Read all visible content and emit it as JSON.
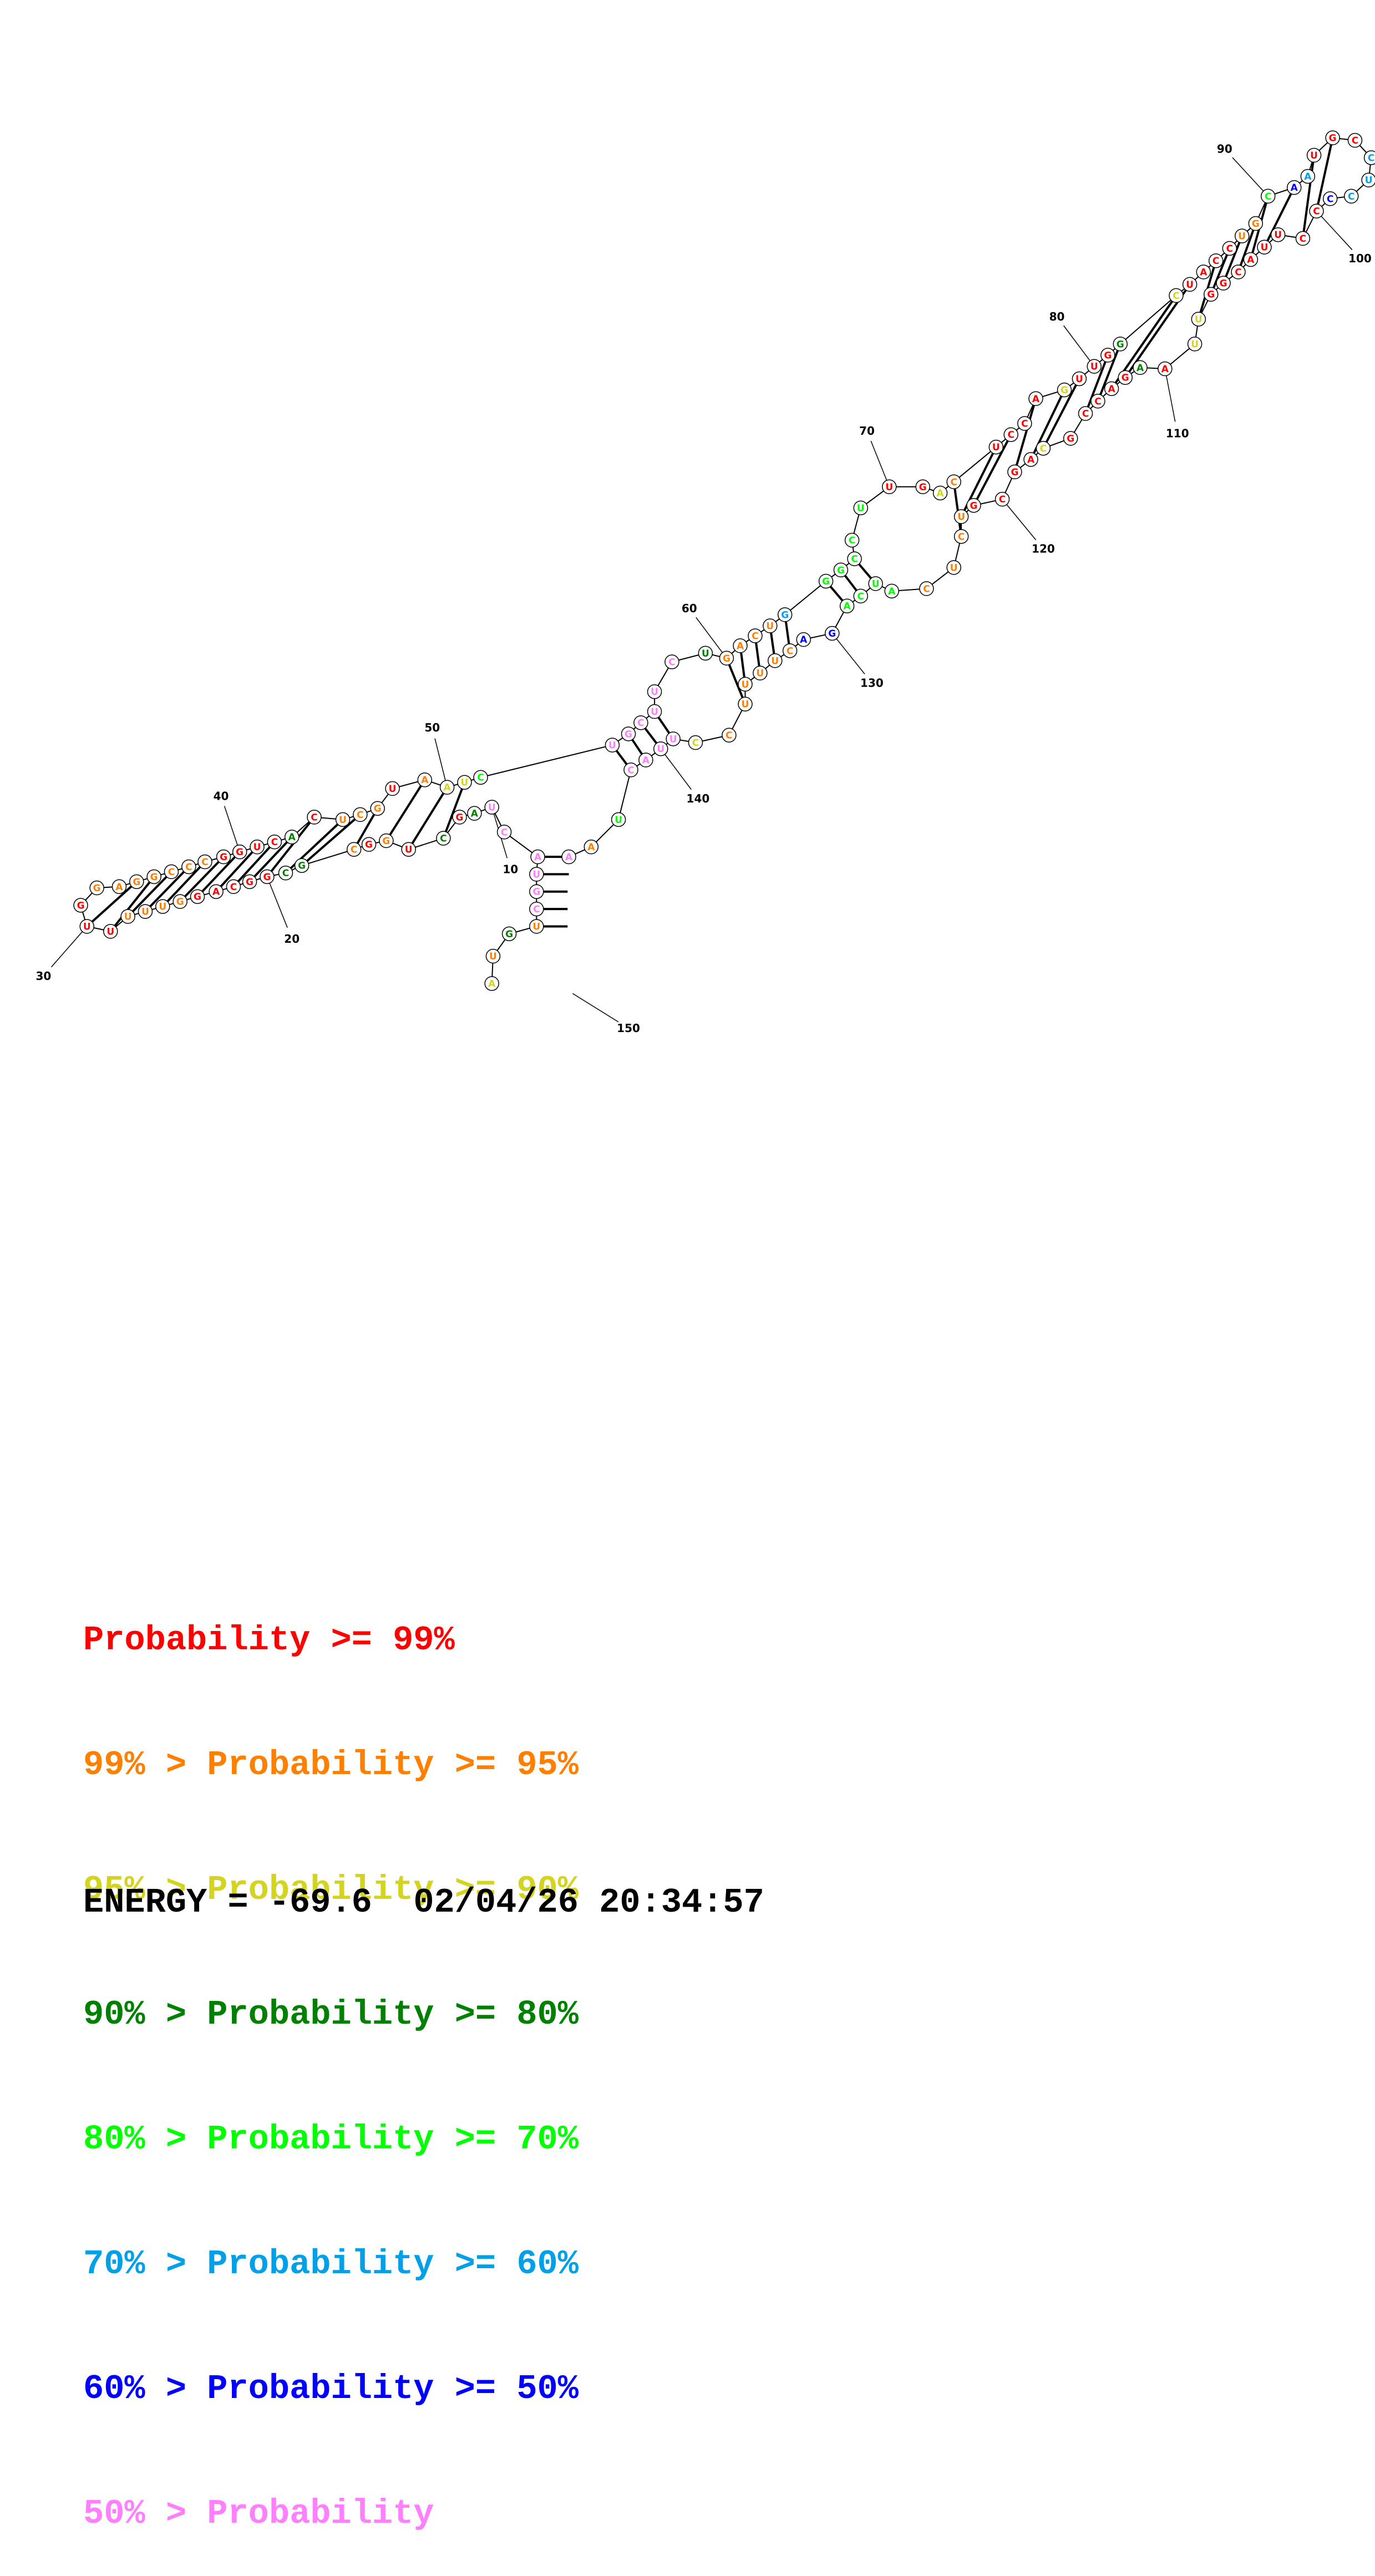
{
  "colors": {
    "p99": "#ff0000",
    "p95": "#ff8000",
    "p90": "#d4d420",
    "p80": "#008000",
    "p70": "#00ff00",
    "p60": "#00a0e8",
    "p50": "#0000ff",
    "plow": "#ff80ff"
  },
  "position_labels": [
    "10",
    "20",
    "30",
    "40",
    "50",
    "60",
    "70",
    "80",
    "90",
    "100",
    "110",
    "120",
    "130",
    "140",
    "150"
  ],
  "sequence_letters": [
    "A",
    "U",
    "G",
    "U",
    "C",
    "G",
    "U",
    "A",
    "C",
    "U",
    "A",
    "G",
    "C",
    "U",
    "G",
    "G",
    "C",
    "G",
    "C",
    "G",
    "G",
    "C",
    "A",
    "G",
    "G",
    "U",
    "U",
    "U",
    "U",
    "U",
    "G",
    "G",
    "A",
    "G",
    "G",
    "C",
    "C",
    "C",
    "G",
    "G",
    "U",
    "C",
    "A",
    "C",
    "U",
    "C",
    "G",
    "U",
    "A",
    "A",
    "U",
    "C",
    "U",
    "G",
    "C",
    "U",
    "U",
    "C",
    "U",
    "G",
    "A",
    "C",
    "U",
    "G",
    "G",
    "G",
    "C",
    "C",
    "U",
    "U",
    "G",
    "A",
    "C",
    "U",
    "C",
    "C",
    "A",
    "G",
    "U",
    "U",
    "G",
    "G",
    "C",
    "U",
    "A",
    "C",
    "C",
    "U",
    "G",
    "C",
    "A",
    "A",
    "U",
    "G",
    "C",
    "C",
    "U",
    "C",
    "C",
    "C",
    "C",
    "U",
    "U",
    "A",
    "C",
    "G",
    "G",
    "U",
    "U",
    "A",
    "A",
    "G",
    "A",
    "C",
    "C",
    "G",
    "C",
    "A",
    "G",
    "C",
    "G",
    "U",
    "C",
    "U",
    "C",
    "A",
    "U",
    "C",
    "A",
    "G",
    "A",
    "C",
    "U",
    "U",
    "U",
    "U",
    "C",
    "C",
    "U",
    "U",
    "A",
    "C",
    "U",
    "A",
    "A"
  ],
  "legend": [
    {
      "prefix": "",
      "label": "Probability >= 99%",
      "color": "#ff0000"
    },
    {
      "prefix": "99% > ",
      "label": "Probability >= 95%",
      "color": "#ff8000"
    },
    {
      "prefix": "95% > ",
      "label": "Probability >= 90%",
      "color": "#d4d420"
    },
    {
      "prefix": "90% > ",
      "label": "Probability >= 80%",
      "color": "#008000"
    },
    {
      "prefix": "80% > ",
      "label": "Probability >= 70%",
      "color": "#00ff00"
    },
    {
      "prefix": "70% > ",
      "label": "Probability >= 60%",
      "color": "#00a0e8"
    },
    {
      "prefix": "60% > ",
      "label": "Probability >= 50%",
      "color": "#0000ff"
    },
    {
      "prefix": "50% > ",
      "label": "Probability",
      "color": "#ff80ff"
    }
  ],
  "footer": {
    "energy": "ENERGY = -69.6",
    "timestamp": "02/04/26 20:34:57"
  }
}
